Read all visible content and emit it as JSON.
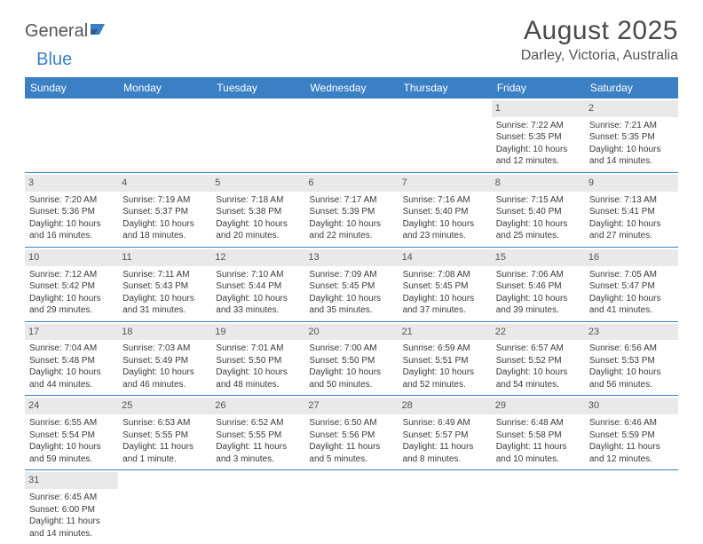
{
  "logo": {
    "part1": "General",
    "part2": "Blue"
  },
  "title": "August 2025",
  "location": "Darley, Victoria, Australia",
  "headers": [
    "Sunday",
    "Monday",
    "Tuesday",
    "Wednesday",
    "Thursday",
    "Friday",
    "Saturday"
  ],
  "colors": {
    "header_bg": "#3b7fc4",
    "header_fg": "#ffffff",
    "daynum_bg": "#e9e9e9",
    "border": "#3b7fc4",
    "text": "#3a3a3a"
  },
  "weeks": [
    [
      null,
      null,
      null,
      null,
      null,
      {
        "n": "1",
        "sr": "Sunrise: 7:22 AM",
        "ss": "Sunset: 5:35 PM",
        "d1": "Daylight: 10 hours",
        "d2": "and 12 minutes."
      },
      {
        "n": "2",
        "sr": "Sunrise: 7:21 AM",
        "ss": "Sunset: 5:35 PM",
        "d1": "Daylight: 10 hours",
        "d2": "and 14 minutes."
      }
    ],
    [
      {
        "n": "3",
        "sr": "Sunrise: 7:20 AM",
        "ss": "Sunset: 5:36 PM",
        "d1": "Daylight: 10 hours",
        "d2": "and 16 minutes."
      },
      {
        "n": "4",
        "sr": "Sunrise: 7:19 AM",
        "ss": "Sunset: 5:37 PM",
        "d1": "Daylight: 10 hours",
        "d2": "and 18 minutes."
      },
      {
        "n": "5",
        "sr": "Sunrise: 7:18 AM",
        "ss": "Sunset: 5:38 PM",
        "d1": "Daylight: 10 hours",
        "d2": "and 20 minutes."
      },
      {
        "n": "6",
        "sr": "Sunrise: 7:17 AM",
        "ss": "Sunset: 5:39 PM",
        "d1": "Daylight: 10 hours",
        "d2": "and 22 minutes."
      },
      {
        "n": "7",
        "sr": "Sunrise: 7:16 AM",
        "ss": "Sunset: 5:40 PM",
        "d1": "Daylight: 10 hours",
        "d2": "and 23 minutes."
      },
      {
        "n": "8",
        "sr": "Sunrise: 7:15 AM",
        "ss": "Sunset: 5:40 PM",
        "d1": "Daylight: 10 hours",
        "d2": "and 25 minutes."
      },
      {
        "n": "9",
        "sr": "Sunrise: 7:13 AM",
        "ss": "Sunset: 5:41 PM",
        "d1": "Daylight: 10 hours",
        "d2": "and 27 minutes."
      }
    ],
    [
      {
        "n": "10",
        "sr": "Sunrise: 7:12 AM",
        "ss": "Sunset: 5:42 PM",
        "d1": "Daylight: 10 hours",
        "d2": "and 29 minutes."
      },
      {
        "n": "11",
        "sr": "Sunrise: 7:11 AM",
        "ss": "Sunset: 5:43 PM",
        "d1": "Daylight: 10 hours",
        "d2": "and 31 minutes."
      },
      {
        "n": "12",
        "sr": "Sunrise: 7:10 AM",
        "ss": "Sunset: 5:44 PM",
        "d1": "Daylight: 10 hours",
        "d2": "and 33 minutes."
      },
      {
        "n": "13",
        "sr": "Sunrise: 7:09 AM",
        "ss": "Sunset: 5:45 PM",
        "d1": "Daylight: 10 hours",
        "d2": "and 35 minutes."
      },
      {
        "n": "14",
        "sr": "Sunrise: 7:08 AM",
        "ss": "Sunset: 5:45 PM",
        "d1": "Daylight: 10 hours",
        "d2": "and 37 minutes."
      },
      {
        "n": "15",
        "sr": "Sunrise: 7:06 AM",
        "ss": "Sunset: 5:46 PM",
        "d1": "Daylight: 10 hours",
        "d2": "and 39 minutes."
      },
      {
        "n": "16",
        "sr": "Sunrise: 7:05 AM",
        "ss": "Sunset: 5:47 PM",
        "d1": "Daylight: 10 hours",
        "d2": "and 41 minutes."
      }
    ],
    [
      {
        "n": "17",
        "sr": "Sunrise: 7:04 AM",
        "ss": "Sunset: 5:48 PM",
        "d1": "Daylight: 10 hours",
        "d2": "and 44 minutes."
      },
      {
        "n": "18",
        "sr": "Sunrise: 7:03 AM",
        "ss": "Sunset: 5:49 PM",
        "d1": "Daylight: 10 hours",
        "d2": "and 46 minutes."
      },
      {
        "n": "19",
        "sr": "Sunrise: 7:01 AM",
        "ss": "Sunset: 5:50 PM",
        "d1": "Daylight: 10 hours",
        "d2": "and 48 minutes."
      },
      {
        "n": "20",
        "sr": "Sunrise: 7:00 AM",
        "ss": "Sunset: 5:50 PM",
        "d1": "Daylight: 10 hours",
        "d2": "and 50 minutes."
      },
      {
        "n": "21",
        "sr": "Sunrise: 6:59 AM",
        "ss": "Sunset: 5:51 PM",
        "d1": "Daylight: 10 hours",
        "d2": "and 52 minutes."
      },
      {
        "n": "22",
        "sr": "Sunrise: 6:57 AM",
        "ss": "Sunset: 5:52 PM",
        "d1": "Daylight: 10 hours",
        "d2": "and 54 minutes."
      },
      {
        "n": "23",
        "sr": "Sunrise: 6:56 AM",
        "ss": "Sunset: 5:53 PM",
        "d1": "Daylight: 10 hours",
        "d2": "and 56 minutes."
      }
    ],
    [
      {
        "n": "24",
        "sr": "Sunrise: 6:55 AM",
        "ss": "Sunset: 5:54 PM",
        "d1": "Daylight: 10 hours",
        "d2": "and 59 minutes."
      },
      {
        "n": "25",
        "sr": "Sunrise: 6:53 AM",
        "ss": "Sunset: 5:55 PM",
        "d1": "Daylight: 11 hours",
        "d2": "and 1 minute."
      },
      {
        "n": "26",
        "sr": "Sunrise: 6:52 AM",
        "ss": "Sunset: 5:55 PM",
        "d1": "Daylight: 11 hours",
        "d2": "and 3 minutes."
      },
      {
        "n": "27",
        "sr": "Sunrise: 6:50 AM",
        "ss": "Sunset: 5:56 PM",
        "d1": "Daylight: 11 hours",
        "d2": "and 5 minutes."
      },
      {
        "n": "28",
        "sr": "Sunrise: 6:49 AM",
        "ss": "Sunset: 5:57 PM",
        "d1": "Daylight: 11 hours",
        "d2": "and 8 minutes."
      },
      {
        "n": "29",
        "sr": "Sunrise: 6:48 AM",
        "ss": "Sunset: 5:58 PM",
        "d1": "Daylight: 11 hours",
        "d2": "and 10 minutes."
      },
      {
        "n": "30",
        "sr": "Sunrise: 6:46 AM",
        "ss": "Sunset: 5:59 PM",
        "d1": "Daylight: 11 hours",
        "d2": "and 12 minutes."
      }
    ],
    [
      {
        "n": "31",
        "sr": "Sunrise: 6:45 AM",
        "ss": "Sunset: 6:00 PM",
        "d1": "Daylight: 11 hours",
        "d2": "and 14 minutes."
      },
      null,
      null,
      null,
      null,
      null,
      null
    ]
  ]
}
